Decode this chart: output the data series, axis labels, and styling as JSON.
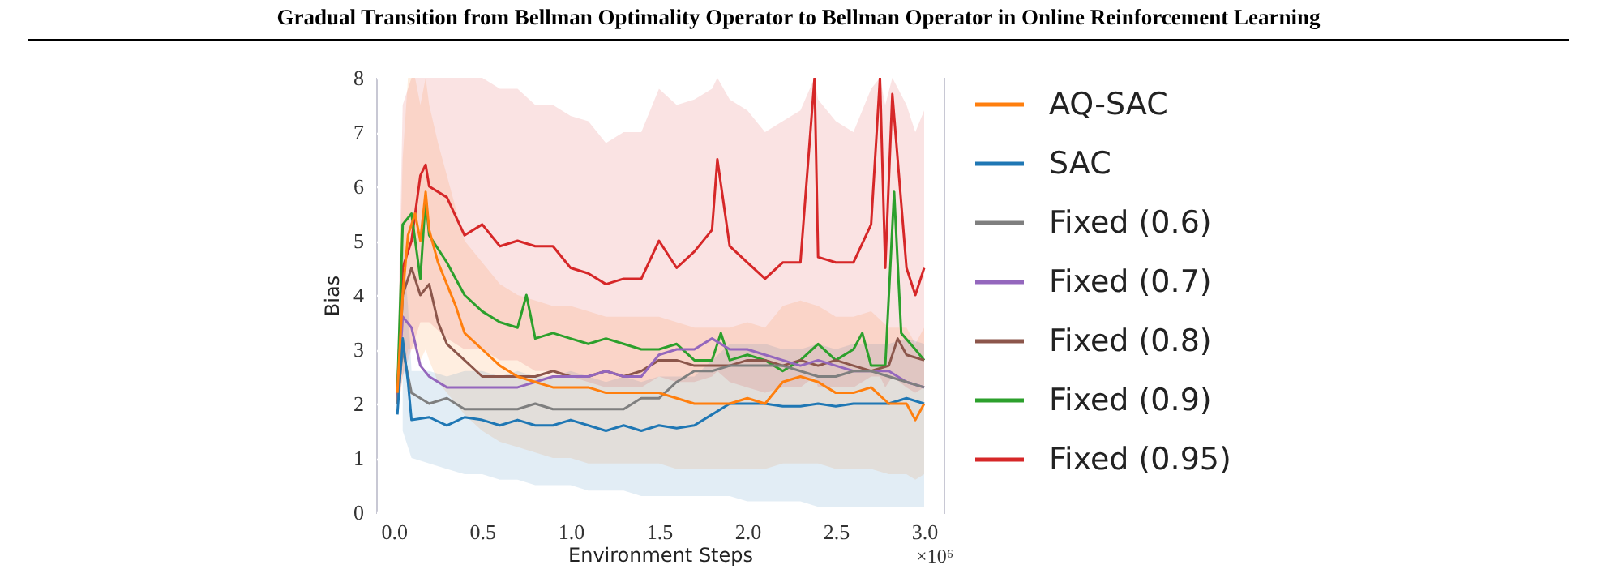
{
  "chart_data": {
    "type": "line",
    "title": "Gradual Transition from Bellman Optimality Operator to Bellman Operator in Online Reinforcement Learning",
    "xlabel": "Environment Steps",
    "ylabel": "Bias",
    "annotations": [
      "×10⁶"
    ],
    "xlim": [
      -0.1,
      3.11
    ],
    "ylim": [
      0,
      8
    ],
    "xticks": [
      {
        "value": 0,
        "label": "0.0"
      },
      0.5,
      {
        "value": 1,
        "label": "1.0"
      },
      1.5,
      {
        "value": 2,
        "label": "2.0"
      },
      2.5,
      {
        "value": 3,
        "label": "3.0"
      }
    ],
    "yticks": [
      0,
      1,
      2,
      3,
      4,
      5,
      6,
      7,
      8
    ],
    "grid": true,
    "legend": "right",
    "series": [
      {
        "name": "AQ-SAC",
        "color": "#ff7f0e",
        "x": [
          0.02,
          0.05,
          0.08,
          0.12,
          0.15,
          0.18,
          0.2,
          0.25,
          0.3,
          0.35,
          0.4,
          0.5,
          0.6,
          0.7,
          0.8,
          0.9,
          1.0,
          1.1,
          1.2,
          1.3,
          1.4,
          1.5,
          1.6,
          1.7,
          1.8,
          1.9,
          2.0,
          2.1,
          2.2,
          2.3,
          2.4,
          2.5,
          2.6,
          2.7,
          2.8,
          2.9,
          2.95,
          3.0
        ],
        "values": [
          2.2,
          4.0,
          5.1,
          5.5,
          5.0,
          5.9,
          5.2,
          4.6,
          4.2,
          3.8,
          3.3,
          3.0,
          2.7,
          2.5,
          2.4,
          2.3,
          2.3,
          2.3,
          2.2,
          2.2,
          2.2,
          2.2,
          2.1,
          2.0,
          2.0,
          2.0,
          2.1,
          2.0,
          2.4,
          2.5,
          2.4,
          2.2,
          2.2,
          2.3,
          2.0,
          2.0,
          1.7,
          2.0
        ],
        "lower": [
          1.8,
          2.5,
          3,
          3,
          2.8,
          3,
          2.8,
          2.4,
          2.2,
          2,
          1.8,
          1.5,
          1.3,
          1.2,
          1.1,
          1.0,
          1.0,
          0.9,
          0.9,
          0.9,
          0.9,
          0.9,
          0.8,
          0.8,
          0.8,
          0.8,
          0.8,
          0.8,
          0.9,
          0.9,
          0.9,
          0.8,
          0.8,
          0.8,
          0.7,
          0.7,
          0.6,
          0.7
        ],
        "upper": [
          2.6,
          6.5,
          8,
          8,
          7.5,
          8,
          7.5,
          6.8,
          6.2,
          5.6,
          5.0,
          4.6,
          4.2,
          4.0,
          3.9,
          3.8,
          3.8,
          3.7,
          3.6,
          3.6,
          3.6,
          3.6,
          3.5,
          3.4,
          3.4,
          3.4,
          3.5,
          3.4,
          3.8,
          3.9,
          3.8,
          3.6,
          3.6,
          3.7,
          3.4,
          3.4,
          3.1,
          3.4
        ]
      },
      {
        "name": "SAC",
        "color": "#1f77b4",
        "x": [
          0.02,
          0.05,
          0.08,
          0.1,
          0.2,
          0.3,
          0.4,
          0.5,
          0.6,
          0.7,
          0.8,
          0.9,
          1.0,
          1.1,
          1.2,
          1.3,
          1.4,
          1.5,
          1.6,
          1.7,
          1.8,
          1.9,
          2.0,
          2.1,
          2.2,
          2.3,
          2.4,
          2.5,
          2.6,
          2.7,
          2.8,
          2.9,
          3.0
        ],
        "values": [
          1.8,
          3.2,
          2.4,
          1.7,
          1.75,
          1.6,
          1.75,
          1.7,
          1.6,
          1.7,
          1.6,
          1.6,
          1.7,
          1.6,
          1.5,
          1.6,
          1.5,
          1.6,
          1.55,
          1.6,
          1.8,
          2.0,
          2.0,
          2.0,
          1.95,
          1.95,
          2.0,
          1.95,
          2.0,
          2.0,
          2.0,
          2.1,
          2.0
        ],
        "lower": [
          null,
          1.5,
          1.2,
          1.0,
          0.9,
          0.8,
          0.7,
          0.7,
          0.6,
          0.6,
          0.5,
          0.5,
          0.5,
          0.4,
          0.4,
          0.4,
          0.3,
          0.3,
          0.3,
          0.3,
          0.3,
          0.3,
          0.2,
          0.2,
          0.2,
          0.2,
          0.1,
          0.1,
          0.1,
          0.1,
          0.1,
          0.1,
          0.1
        ],
        "upper": [
          null,
          5,
          3.8,
          2.6,
          2.6,
          2.5,
          2.6,
          2.6,
          2.5,
          2.6,
          2.5,
          2.5,
          2.6,
          2.5,
          2.4,
          2.5,
          2.4,
          2.5,
          2.5,
          2.5,
          2.8,
          3.1,
          3.1,
          3.1,
          3.0,
          3.0,
          3.1,
          3.0,
          3.1,
          3.1,
          3.1,
          3.2,
          3.1
        ]
      },
      {
        "name": "Fixed (0.6)",
        "color": "#7f7f7f",
        "x": [
          0.02,
          0.05,
          0.1,
          0.2,
          0.3,
          0.4,
          0.5,
          0.6,
          0.7,
          0.8,
          0.9,
          1.0,
          1.1,
          1.2,
          1.3,
          1.4,
          1.5,
          1.6,
          1.7,
          1.8,
          1.9,
          2.0,
          2.1,
          2.2,
          2.3,
          2.4,
          2.5,
          2.6,
          2.7,
          2.8,
          2.9,
          3.0
        ],
        "values": [
          2.0,
          3.0,
          2.2,
          2.0,
          2.1,
          1.9,
          1.9,
          1.9,
          1.9,
          2.0,
          1.9,
          1.9,
          1.9,
          1.9,
          1.9,
          2.1,
          2.1,
          2.4,
          2.6,
          2.6,
          2.7,
          2.7,
          2.7,
          2.7,
          2.6,
          2.5,
          2.5,
          2.6,
          2.6,
          2.5,
          2.4,
          2.3
        ]
      },
      {
        "name": "Fixed (0.7)",
        "color": "#9467bd",
        "x": [
          0.02,
          0.05,
          0.1,
          0.15,
          0.2,
          0.3,
          0.4,
          0.5,
          0.6,
          0.7,
          0.8,
          0.9,
          1.0,
          1.1,
          1.2,
          1.3,
          1.4,
          1.5,
          1.6,
          1.7,
          1.8,
          1.9,
          2.0,
          2.1,
          2.2,
          2.3,
          2.4,
          2.5,
          2.6,
          2.7,
          2.8,
          2.9,
          3.0
        ],
        "values": [
          2.0,
          3.6,
          3.4,
          2.7,
          2.5,
          2.3,
          2.3,
          2.3,
          2.3,
          2.3,
          2.4,
          2.5,
          2.5,
          2.5,
          2.6,
          2.5,
          2.5,
          2.9,
          3.0,
          3.0,
          3.2,
          3.0,
          3.0,
          2.9,
          2.8,
          2.7,
          2.8,
          2.7,
          2.6,
          2.6,
          2.6,
          2.4,
          2.3
        ]
      },
      {
        "name": "Fixed (0.8)",
        "color": "#8c564b",
        "x": [
          0.02,
          0.05,
          0.1,
          0.15,
          0.2,
          0.25,
          0.3,
          0.4,
          0.5,
          0.6,
          0.7,
          0.8,
          0.9,
          1.0,
          1.1,
          1.2,
          1.3,
          1.4,
          1.5,
          1.6,
          1.7,
          1.8,
          1.9,
          2.0,
          2.1,
          2.2,
          2.3,
          2.4,
          2.5,
          2.6,
          2.7,
          2.8,
          2.85,
          2.9,
          3.0
        ],
        "values": [
          2.1,
          4.0,
          4.5,
          4.0,
          4.2,
          3.5,
          3.1,
          2.8,
          2.5,
          2.5,
          2.5,
          2.5,
          2.6,
          2.5,
          2.5,
          2.6,
          2.5,
          2.6,
          2.8,
          2.8,
          2.7,
          2.7,
          2.7,
          2.8,
          2.8,
          2.7,
          2.8,
          2.7,
          2.8,
          2.7,
          2.6,
          2.7,
          3.2,
          2.9,
          2.8
        ]
      },
      {
        "name": "Fixed (0.9)",
        "color": "#2ca02c",
        "x": [
          0.02,
          0.05,
          0.1,
          0.15,
          0.18,
          0.2,
          0.3,
          0.4,
          0.5,
          0.6,
          0.7,
          0.75,
          0.8,
          0.9,
          1.0,
          1.1,
          1.2,
          1.3,
          1.4,
          1.5,
          1.6,
          1.7,
          1.8,
          1.85,
          1.9,
          2.0,
          2.1,
          2.2,
          2.3,
          2.4,
          2.5,
          2.6,
          2.65,
          2.7,
          2.78,
          2.83,
          2.87,
          2.95,
          3.0
        ],
        "values": [
          2.2,
          5.3,
          5.5,
          4.3,
          5.8,
          5.1,
          4.6,
          4.0,
          3.7,
          3.5,
          3.4,
          4.0,
          3.2,
          3.3,
          3.2,
          3.1,
          3.2,
          3.1,
          3.0,
          3.0,
          3.1,
          2.8,
          2.8,
          3.3,
          2.8,
          2.9,
          2.8,
          2.6,
          2.8,
          3.1,
          2.8,
          3.0,
          3.3,
          2.7,
          2.7,
          5.9,
          3.3,
          3.0,
          2.8
        ]
      },
      {
        "name": "Fixed (0.95)",
        "color": "#d62728",
        "x": [
          0.02,
          0.05,
          0.1,
          0.15,
          0.18,
          0.2,
          0.3,
          0.4,
          0.5,
          0.6,
          0.7,
          0.8,
          0.9,
          1.0,
          1.1,
          1.2,
          1.3,
          1.4,
          1.5,
          1.6,
          1.7,
          1.8,
          1.83,
          1.9,
          2.0,
          2.1,
          2.2,
          2.3,
          2.38,
          2.4,
          2.5,
          2.6,
          2.7,
          2.75,
          2.78,
          2.82,
          2.9,
          2.95,
          3.0
        ],
        "values": [
          2.2,
          4.5,
          5.0,
          6.2,
          6.4,
          6.0,
          5.8,
          5.1,
          5.3,
          4.9,
          5.0,
          4.9,
          4.9,
          4.5,
          4.4,
          4.2,
          4.3,
          4.3,
          5.0,
          4.5,
          4.8,
          5.2,
          6.5,
          4.9,
          4.6,
          4.3,
          4.6,
          4.6,
          8.0,
          4.7,
          4.6,
          4.6,
          5.3,
          8.0,
          4.5,
          7.7,
          4.5,
          4.0,
          4.5
        ],
        "lower": [
          1.8,
          2.5,
          3,
          3.5,
          3.5,
          3.5,
          3.2,
          3,
          3,
          2.8,
          2.8,
          2.6,
          2.6,
          2.5,
          2.4,
          2.3,
          2.3,
          2.3,
          2.5,
          2.4,
          2.4,
          2.5,
          2.6,
          2.4,
          2.3,
          2.2,
          2.3,
          2.3,
          2.5,
          2.3,
          2.3,
          2.3,
          2.5,
          2.5,
          2.3,
          2.5,
          2.3,
          2.2,
          2.3
        ],
        "upper": [
          2.6,
          7.5,
          8,
          8,
          8,
          8,
          8,
          8,
          8,
          7.8,
          7.8,
          7.5,
          7.5,
          7.3,
          7.2,
          6.8,
          7.0,
          7.0,
          7.8,
          7.5,
          7.6,
          7.8,
          8,
          7.6,
          7.4,
          7.0,
          7.2,
          7.4,
          8,
          7.6,
          7.2,
          7.0,
          7.8,
          8,
          7.5,
          8,
          7.5,
          7.0,
          7.4
        ]
      }
    ]
  }
}
